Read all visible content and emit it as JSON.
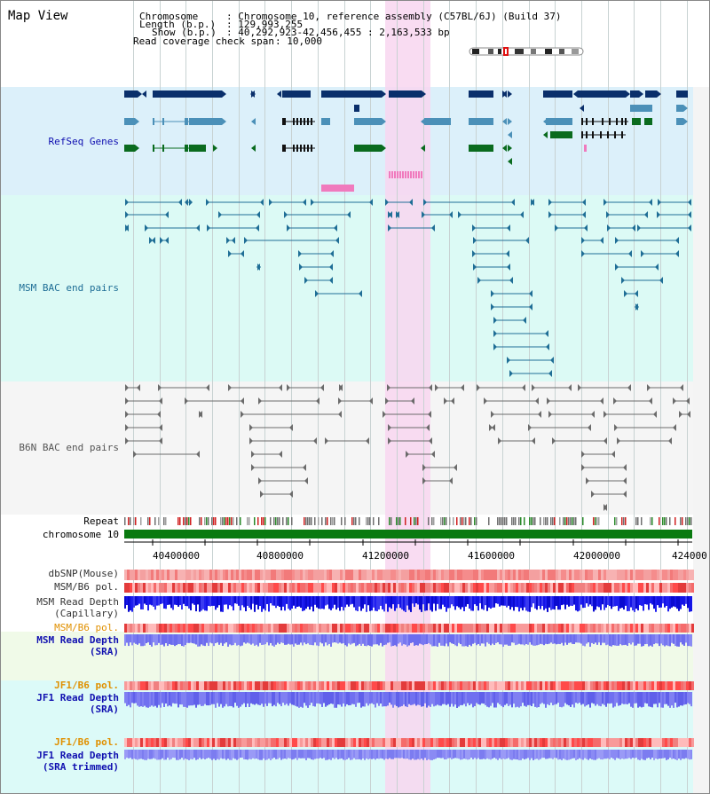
{
  "title": "Map View",
  "header": {
    "chromosome_label": "Chromosome",
    "chromosome_value": "Chromosome 10, reference assembly (C57BL/6J) (Build 37)",
    "length_label": "Length (b.p.)",
    "length_value": "129,993,255",
    "show_label": "Show (b.p.)",
    "show_value": "40,292,923-42,456,455 : 2,163,533 bp",
    "coverage_label": "Read coverage check span",
    "coverage_value": "10,000"
  },
  "sections": {
    "refseq": "RefSeq Genes",
    "msm_bac": "MSM BAC end pairs",
    "b6n_bac": "B6N BAC end pairs"
  },
  "tracks": {
    "repeat": "Repeat",
    "chromosome": "chromosome 10",
    "dbsnp": "dbSNP(Mouse)",
    "msm_b6_pol_1": "MSM/B6 pol.",
    "msm_depth_cap_1": "MSM Read Depth",
    "msm_depth_cap_2": "(Capillary)",
    "msm_b6_pol_2": "MSM/B6 pol.",
    "msm_depth_sra_1": "MSM Read Depth",
    "msm_depth_sra_2": "(SRA)",
    "jf1_b6_pol_1": "JF1/B6 pol.",
    "jf1_depth_sra_1": "JF1 Read Depth",
    "jf1_depth_sra_2": "(SRA)",
    "jf1_b6_pol_2": "JF1/B6 pol.",
    "jf1_depth_trim_1": "JF1 Read Depth",
    "jf1_depth_trim_2": "(SRA trimmed)"
  },
  "axis_ticks": [
    "40400000",
    "40800000",
    "41200000",
    "41600000",
    "42000000",
    "424000"
  ],
  "colors": {
    "refseq_bg": "#dcf0fa",
    "msm_bg": "#dcfaf5",
    "b6n_bg": "#f5f5f5",
    "highlight": "#f8d6f0",
    "gene_dark": "#0a2f6b",
    "gene_mid": "#4b90b8",
    "gene_green": "#0a6b1e",
    "msm_pair": "#1f6e96",
    "b6n_pair": "#6b6b6b",
    "depth_blue": "#1414e6",
    "depth_light": "#7878f0"
  },
  "icons": {
    "chromosome_ideogram": "chromosome-ideogram-icon"
  }
}
